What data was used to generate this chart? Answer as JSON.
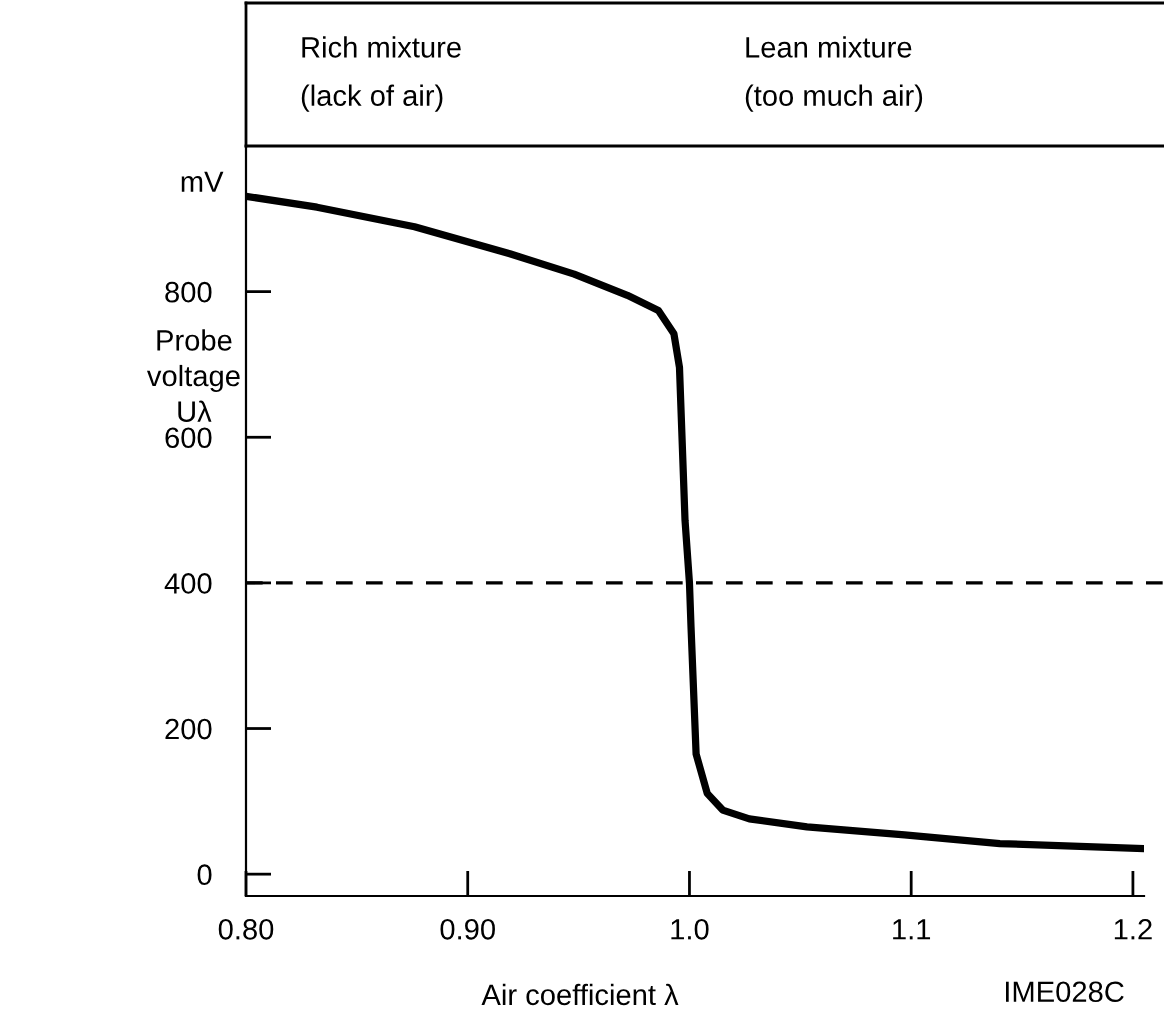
{
  "chart_data": {
    "type": "line",
    "xlabel": "Air coefficient λ",
    "ylabel": "Probe\nvoltage\nUλ",
    "annotations": [
      "mV",
      "Rich mixture\n(lack of air)",
      "Lean mixture\n(too much air)",
      "IME028C"
    ],
    "x": [
      0.8,
      0.832,
      0.876,
      0.919,
      0.948,
      0.972,
      0.986,
      0.993,
      0.9955,
      0.998,
      1.0,
      1.0007,
      1.003,
      1.008,
      1.015,
      1.027,
      1.053,
      1.097,
      1.14,
      1.205
    ],
    "series": [
      {
        "color": "#000000",
        "values": [
          931,
          916,
          889,
          852,
          824,
          795,
          774,
          742,
          696,
          486,
          400,
          340,
          165,
          111,
          88,
          76,
          65,
          54,
          42,
          35
        ]
      }
    ],
    "xlim": [
      0.8,
      1.205
    ],
    "xticks": [
      {
        "value": 0.8,
        "label": "0.80"
      },
      {
        "value": 0.9,
        "label": "0.90"
      },
      {
        "value": 1.0,
        "label": "1.0"
      },
      1.1,
      1.2
    ],
    "ylim": [
      -30,
      1000
    ],
    "yticks": [
      0,
      200,
      400,
      600,
      800
    ],
    "ref_lines": [
      {
        "axis": "y",
        "value": 400,
        "color": "#000000",
        "line_style": "dashed"
      }
    ],
    "grid": false,
    "legend": false,
    "marker": "none",
    "line_style": "solid"
  }
}
